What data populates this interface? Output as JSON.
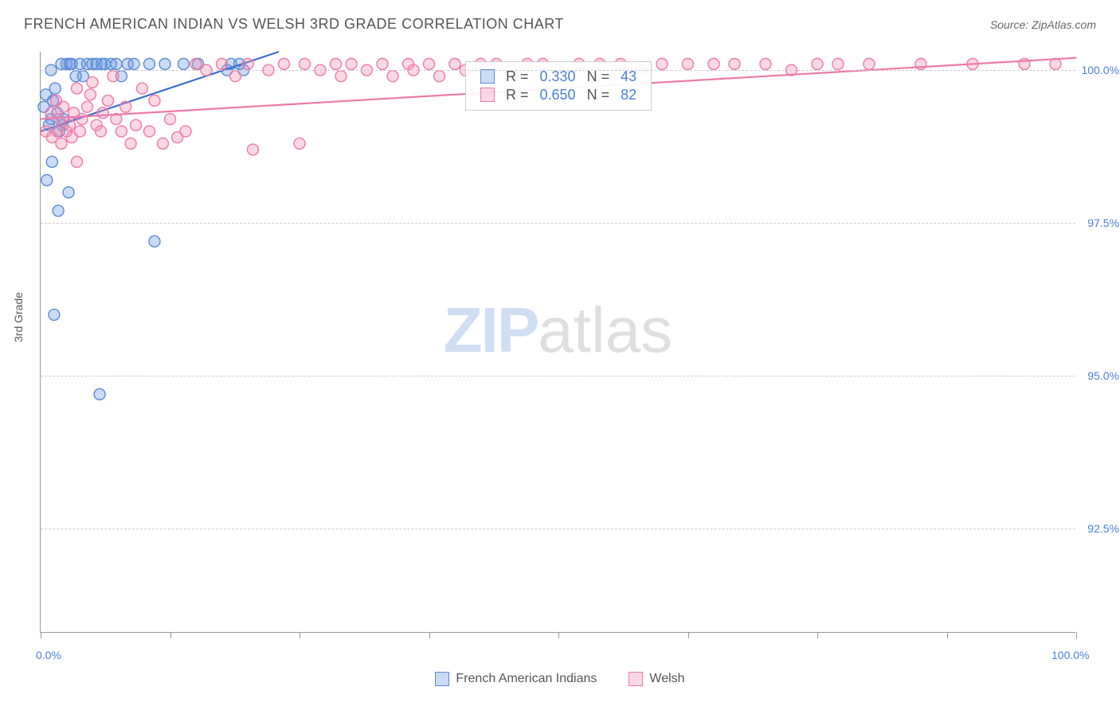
{
  "title": "FRENCH AMERICAN INDIAN VS WELSH 3RD GRADE CORRELATION CHART",
  "source": "Source: ZipAtlas.com",
  "ylabel": "3rd Grade",
  "watermark_zip": "ZIP",
  "watermark_atlas": "atlas",
  "chart": {
    "type": "scatter",
    "xlim": [
      0,
      100
    ],
    "ylim": [
      90.8,
      100.3
    ],
    "yticks": [
      92.5,
      95.0,
      97.5,
      100.0
    ],
    "ytick_labels": [
      "92.5%",
      "95.0%",
      "97.5%",
      "100.0%"
    ],
    "xticks": [
      0,
      12.5,
      25,
      37.5,
      50,
      62.5,
      75,
      87.5,
      100
    ],
    "x_start_label": "0.0%",
    "x_end_label": "100.0%",
    "background_color": "#ffffff",
    "grid_color": "#cccccc",
    "axis_color": "#999999",
    "marker_radius": 7,
    "marker_stroke_width": 1.4,
    "line_width": 2.2,
    "series": [
      {
        "name": "French American Indians",
        "fill": "rgba(102,153,230,0.35)",
        "stroke": "#5b8bd4",
        "line_color": "#3a6fc9",
        "R": "0.330",
        "N": "43",
        "trend": {
          "x1": 0,
          "y1": 99.0,
          "x2": 23,
          "y2": 100.3
        },
        "points": [
          [
            0.3,
            99.4
          ],
          [
            0.5,
            99.6
          ],
          [
            0.6,
            98.2
          ],
          [
            0.8,
            99.1
          ],
          [
            1.0,
            99.2
          ],
          [
            1.1,
            98.5
          ],
          [
            1.2,
            99.5
          ],
          [
            1.3,
            96.0
          ],
          [
            1.4,
            99.7
          ],
          [
            1.6,
            99.3
          ],
          [
            1.7,
            97.7
          ],
          [
            1.8,
            99.0
          ],
          [
            2.0,
            100.1
          ],
          [
            2.1,
            99.1
          ],
          [
            2.2,
            99.2
          ],
          [
            2.5,
            100.1
          ],
          [
            2.8,
            100.1
          ],
          [
            3.0,
            100.1
          ],
          [
            2.7,
            98.0
          ],
          [
            3.4,
            99.9
          ],
          [
            3.8,
            100.1
          ],
          [
            4.1,
            99.9
          ],
          [
            4.5,
            100.1
          ],
          [
            5.0,
            100.1
          ],
          [
            5.4,
            100.1
          ],
          [
            5.9,
            100.1
          ],
          [
            6.2,
            100.1
          ],
          [
            6.8,
            100.1
          ],
          [
            7.3,
            100.1
          ],
          [
            7.8,
            99.9
          ],
          [
            8.4,
            100.1
          ],
          [
            9.0,
            100.1
          ],
          [
            10.5,
            100.1
          ],
          [
            11.0,
            97.2
          ],
          [
            12.0,
            100.1
          ],
          [
            13.8,
            100.1
          ],
          [
            15.2,
            100.1
          ],
          [
            18.0,
            100.0
          ],
          [
            18.4,
            100.1
          ],
          [
            19.2,
            100.1
          ],
          [
            19.6,
            100.0
          ],
          [
            5.7,
            94.7
          ],
          [
            1.0,
            100.0
          ]
        ]
      },
      {
        "name": "Welsh",
        "fill": "rgba(244,143,177,0.35)",
        "stroke": "#ee7aa8",
        "line_color": "#ee7aa8",
        "R": "0.650",
        "N": "82",
        "trend": {
          "x1": 0,
          "y1": 99.2,
          "x2": 100,
          "y2": 100.2
        },
        "points": [
          [
            0.5,
            99.0
          ],
          [
            1.0,
            99.3
          ],
          [
            1.1,
            98.9
          ],
          [
            1.5,
            99.5
          ],
          [
            1.6,
            99.0
          ],
          [
            1.8,
            99.2
          ],
          [
            2.0,
            98.8
          ],
          [
            2.2,
            99.4
          ],
          [
            2.5,
            99.0
          ],
          [
            2.8,
            99.1
          ],
          [
            3.0,
            98.9
          ],
          [
            3.2,
            99.3
          ],
          [
            3.5,
            99.7
          ],
          [
            3.8,
            99.0
          ],
          [
            4.0,
            99.2
          ],
          [
            4.5,
            99.4
          ],
          [
            4.8,
            99.6
          ],
          [
            5.0,
            99.8
          ],
          [
            5.4,
            99.1
          ],
          [
            5.8,
            99.0
          ],
          [
            6.0,
            99.3
          ],
          [
            6.5,
            99.5
          ],
          [
            7.0,
            99.9
          ],
          [
            7.3,
            99.2
          ],
          [
            7.8,
            99.0
          ],
          [
            8.2,
            99.4
          ],
          [
            8.7,
            98.8
          ],
          [
            9.2,
            99.1
          ],
          [
            9.8,
            99.7
          ],
          [
            10.5,
            99.0
          ],
          [
            11.0,
            99.5
          ],
          [
            11.8,
            98.8
          ],
          [
            12.5,
            99.2
          ],
          [
            13.2,
            98.9
          ],
          [
            14.0,
            99.0
          ],
          [
            15.0,
            100.1
          ],
          [
            16.0,
            100.0
          ],
          [
            17.5,
            100.1
          ],
          [
            18.8,
            99.9
          ],
          [
            20.0,
            100.1
          ],
          [
            20.5,
            98.7
          ],
          [
            22.0,
            100.0
          ],
          [
            23.5,
            100.1
          ],
          [
            25.0,
            98.8
          ],
          [
            25.5,
            100.1
          ],
          [
            27.0,
            100.0
          ],
          [
            28.5,
            100.1
          ],
          [
            29.0,
            99.9
          ],
          [
            30.0,
            100.1
          ],
          [
            31.5,
            100.0
          ],
          [
            33.0,
            100.1
          ],
          [
            34.0,
            99.9
          ],
          [
            35.5,
            100.1
          ],
          [
            36.0,
            100.0
          ],
          [
            37.5,
            100.1
          ],
          [
            38.5,
            99.9
          ],
          [
            40.0,
            100.1
          ],
          [
            41.0,
            100.0
          ],
          [
            42.5,
            100.1
          ],
          [
            44.0,
            100.1
          ],
          [
            45.5,
            100.0
          ],
          [
            47.0,
            100.1
          ],
          [
            48.5,
            100.1
          ],
          [
            50.0,
            100.0
          ],
          [
            52.0,
            100.1
          ],
          [
            54.0,
            100.1
          ],
          [
            56.0,
            100.1
          ],
          [
            58.0,
            100.0
          ],
          [
            60.0,
            100.1
          ],
          [
            62.5,
            100.1
          ],
          [
            65.0,
            100.1
          ],
          [
            67.0,
            100.1
          ],
          [
            70.0,
            100.1
          ],
          [
            72.5,
            100.0
          ],
          [
            75.0,
            100.1
          ],
          [
            77.0,
            100.1
          ],
          [
            80.0,
            100.1
          ],
          [
            85.0,
            100.1
          ],
          [
            90.0,
            100.1
          ],
          [
            95.0,
            100.1
          ],
          [
            98.0,
            100.1
          ],
          [
            3.5,
            98.5
          ]
        ]
      }
    ]
  },
  "legend": {
    "series1_label": "French American Indians",
    "series2_label": "Welsh"
  },
  "stats_box": {
    "row1": {
      "r_label": "R =",
      "r_val": "0.330",
      "n_label": "N =",
      "n_val": "43"
    },
    "row2": {
      "r_label": "R =",
      "r_val": "0.650",
      "n_label": "N =",
      "n_val": "82"
    }
  }
}
